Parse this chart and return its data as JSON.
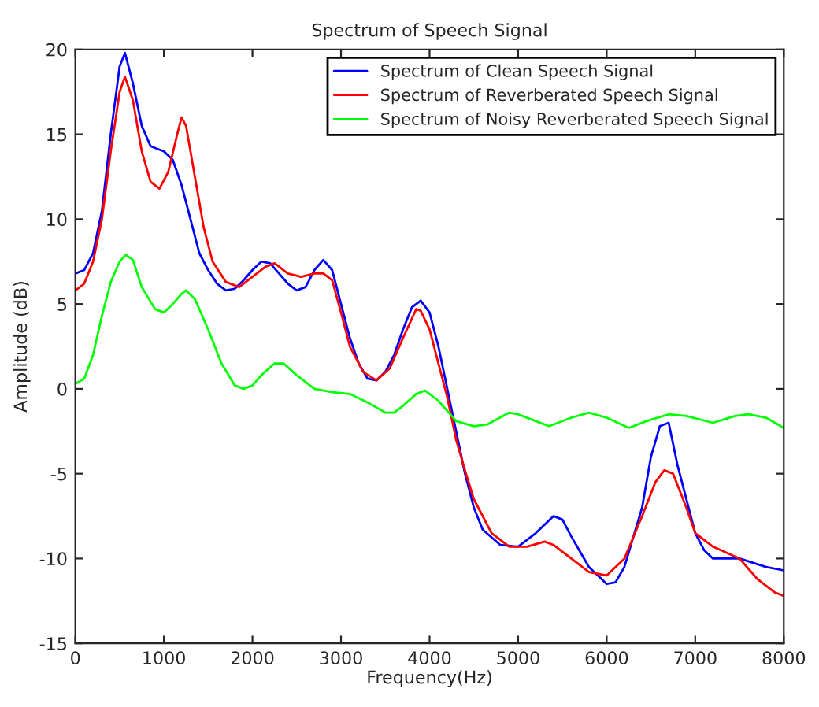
{
  "chart_data": {
    "type": "line",
    "title": "Spectrum of Speech Signal",
    "xlabel": "Frequency(Hz)",
    "ylabel": "Amplitude (dB)",
    "xlim": [
      0,
      8000
    ],
    "xticks": [
      0,
      1000,
      2000,
      3000,
      4000,
      5000,
      6000,
      7000,
      8000
    ],
    "ylim": [
      -15,
      20
    ],
    "yticks": [
      -15,
      -10,
      -5,
      0,
      5,
      10,
      15,
      20
    ],
    "grid": false,
    "legend": "top right",
    "marker": "none",
    "line_style": "solid",
    "series": [
      {
        "name": "Spectrum of Clean Speech Signal",
        "color": "#0000ff",
        "x": [
          0,
          100,
          200,
          300,
          400,
          500,
          560,
          650,
          750,
          850,
          1000,
          1100,
          1200,
          1300,
          1400,
          1500,
          1600,
          1700,
          1800,
          1900,
          2000,
          2100,
          2200,
          2300,
          2400,
          2500,
          2600,
          2700,
          2800,
          2900,
          3000,
          3100,
          3200,
          3300,
          3400,
          3500,
          3600,
          3700,
          3800,
          3900,
          4000,
          4100,
          4200,
          4300,
          4400,
          4500,
          4600,
          4800,
          5000,
          5200,
          5400,
          5500,
          5600,
          5800,
          6000,
          6100,
          6200,
          6400,
          6500,
          6600,
          6700,
          6800,
          7000,
          7100,
          7200,
          7500,
          7800,
          8000
        ],
        "values": [
          6.8,
          7,
          8,
          10.5,
          15,
          19,
          19.8,
          18,
          15.5,
          14.3,
          14,
          13.5,
          12,
          10,
          8,
          7,
          6.2,
          5.8,
          5.9,
          6.4,
          7,
          7.5,
          7.4,
          6.8,
          6.2,
          5.8,
          6,
          7,
          7.6,
          7,
          5,
          3,
          1.5,
          0.6,
          0.5,
          1,
          2,
          3.5,
          4.8,
          5.2,
          4.5,
          2.5,
          0,
          -2.5,
          -5,
          -7,
          -8.3,
          -9.2,
          -9.3,
          -8.5,
          -7.5,
          -7.7,
          -8.7,
          -10.5,
          -11.5,
          -11.4,
          -10.5,
          -7,
          -4,
          -2.2,
          -2,
          -4.5,
          -8.5,
          -9.5,
          -10,
          -10,
          -10.5,
          -10.7
        ]
      },
      {
        "name": "Spectrum of Reverberated Speech Signal",
        "color": "#ff0000",
        "x": [
          0,
          100,
          200,
          300,
          400,
          500,
          560,
          650,
          750,
          850,
          950,
          1050,
          1150,
          1200,
          1250,
          1350,
          1450,
          1550,
          1700,
          1850,
          2000,
          2150,
          2250,
          2400,
          2550,
          2700,
          2800,
          2900,
          3000,
          3100,
          3250,
          3400,
          3550,
          3700,
          3850,
          3900,
          4000,
          4100,
          4200,
          4300,
          4400,
          4500,
          4700,
          4900,
          5100,
          5300,
          5400,
          5600,
          5800,
          6000,
          6200,
          6400,
          6550,
          6650,
          6750,
          6900,
          7000,
          7200,
          7500,
          7700,
          7900,
          8000
        ],
        "values": [
          5.8,
          6.2,
          7.5,
          10,
          14,
          17.5,
          18.4,
          17,
          14,
          12.2,
          11.8,
          12.8,
          15,
          16,
          15.5,
          12.5,
          9.5,
          7.5,
          6.3,
          6,
          6.6,
          7.2,
          7.4,
          6.8,
          6.6,
          6.8,
          6.8,
          6.4,
          4.5,
          2.5,
          1,
          0.5,
          1.2,
          3,
          4.7,
          4.6,
          3.5,
          1.5,
          -0.5,
          -3,
          -4.8,
          -6.5,
          -8.5,
          -9.3,
          -9.3,
          -9,
          -9.2,
          -10,
          -10.8,
          -11,
          -10,
          -7.5,
          -5.5,
          -4.8,
          -5,
          -7,
          -8.5,
          -9.3,
          -10,
          -11.2,
          -12,
          -12.2
        ]
      },
      {
        "name": "Spectrum of Noisy Reverberated Speech Signal",
        "color": "#00ff00",
        "x": [
          0,
          100,
          200,
          300,
          400,
          500,
          570,
          650,
          750,
          900,
          1000,
          1100,
          1200,
          1250,
          1350,
          1500,
          1650,
          1800,
          1900,
          2000,
          2100,
          2250,
          2350,
          2500,
          2700,
          2900,
          3100,
          3300,
          3500,
          3600,
          3700,
          3850,
          3950,
          4100,
          4300,
          4500,
          4650,
          4900,
          5000,
          5200,
          5350,
          5600,
          5800,
          6000,
          6250,
          6450,
          6700,
          6900,
          7200,
          7450,
          7600,
          7800,
          8000
        ],
        "values": [
          0.3,
          0.6,
          2,
          4.3,
          6.3,
          7.5,
          7.9,
          7.6,
          6,
          4.7,
          4.5,
          5,
          5.6,
          5.8,
          5.3,
          3.5,
          1.5,
          0.2,
          0,
          0.2,
          0.8,
          1.5,
          1.5,
          0.8,
          0,
          -0.2,
          -0.3,
          -0.8,
          -1.4,
          -1.4,
          -1,
          -0.3,
          -0.1,
          -0.7,
          -1.9,
          -2.2,
          -2.1,
          -1.4,
          -1.5,
          -1.9,
          -2.2,
          -1.7,
          -1.4,
          -1.7,
          -2.3,
          -1.9,
          -1.5,
          -1.6,
          -2,
          -1.6,
          -1.5,
          -1.7,
          -2.3
        ]
      }
    ]
  }
}
